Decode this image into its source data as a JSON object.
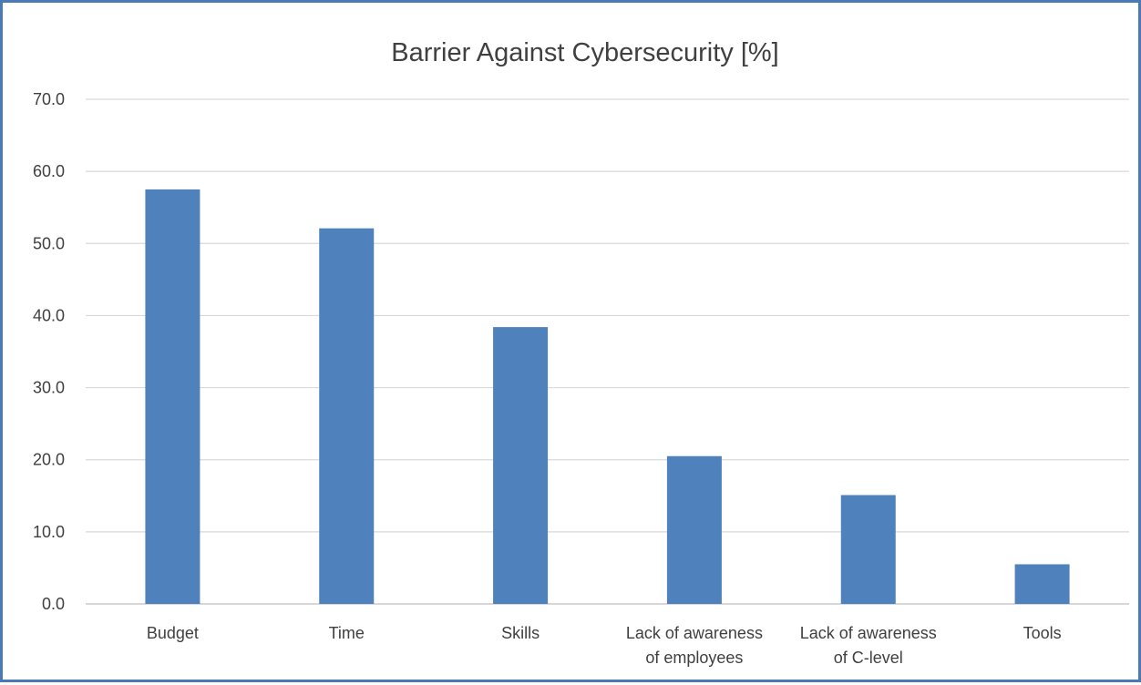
{
  "chart_data": {
    "type": "bar",
    "title": "Barrier Against Cybersecurity [%]",
    "xlabel": "",
    "ylabel": "",
    "ylim": [
      0,
      70
    ],
    "yticks": [
      "0.0",
      "10.0",
      "20.0",
      "30.0",
      "40.0",
      "50.0",
      "60.0",
      "70.0"
    ],
    "grid": true,
    "categories": [
      [
        "Budget"
      ],
      [
        "Time"
      ],
      [
        "Skills"
      ],
      [
        "Lack of awareness",
        "of employees"
      ],
      [
        "Lack of awareness",
        "of C-level"
      ],
      [
        "Tools"
      ]
    ],
    "values": [
      57.5,
      52.1,
      38.4,
      20.5,
      15.1,
      5.5
    ],
    "bar_color": "#4f81bd"
  }
}
